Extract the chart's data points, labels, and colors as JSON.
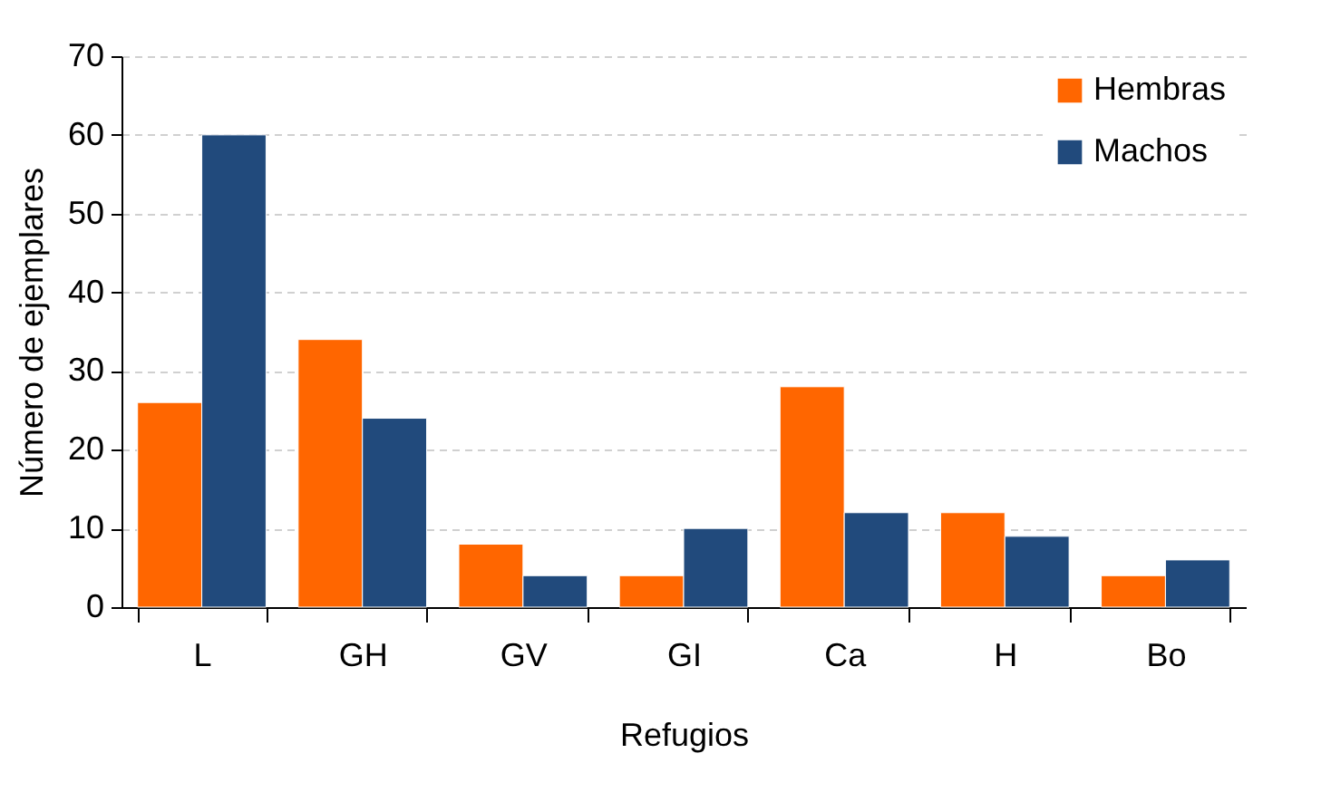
{
  "chart_data": {
    "type": "bar",
    "xlabel": "Refugios",
    "ylabel": "Número de ejemplares",
    "categories": [
      "L",
      "GH",
      "GV",
      "GI",
      "Ca",
      "H",
      "Bo"
    ],
    "series": [
      {
        "name": "Hembras",
        "color": "#ff6600",
        "values": [
          26,
          34,
          8,
          4,
          28,
          12,
          4
        ]
      },
      {
        "name": "Machos",
        "color": "#214a7c",
        "values": [
          60,
          24,
          4,
          10,
          12,
          9,
          6
        ]
      }
    ],
    "ylim": [
      0,
      70
    ],
    "yticks": [
      0,
      10,
      20,
      30,
      40,
      50,
      60,
      70
    ],
    "grid": "y",
    "legend": "top right"
  }
}
